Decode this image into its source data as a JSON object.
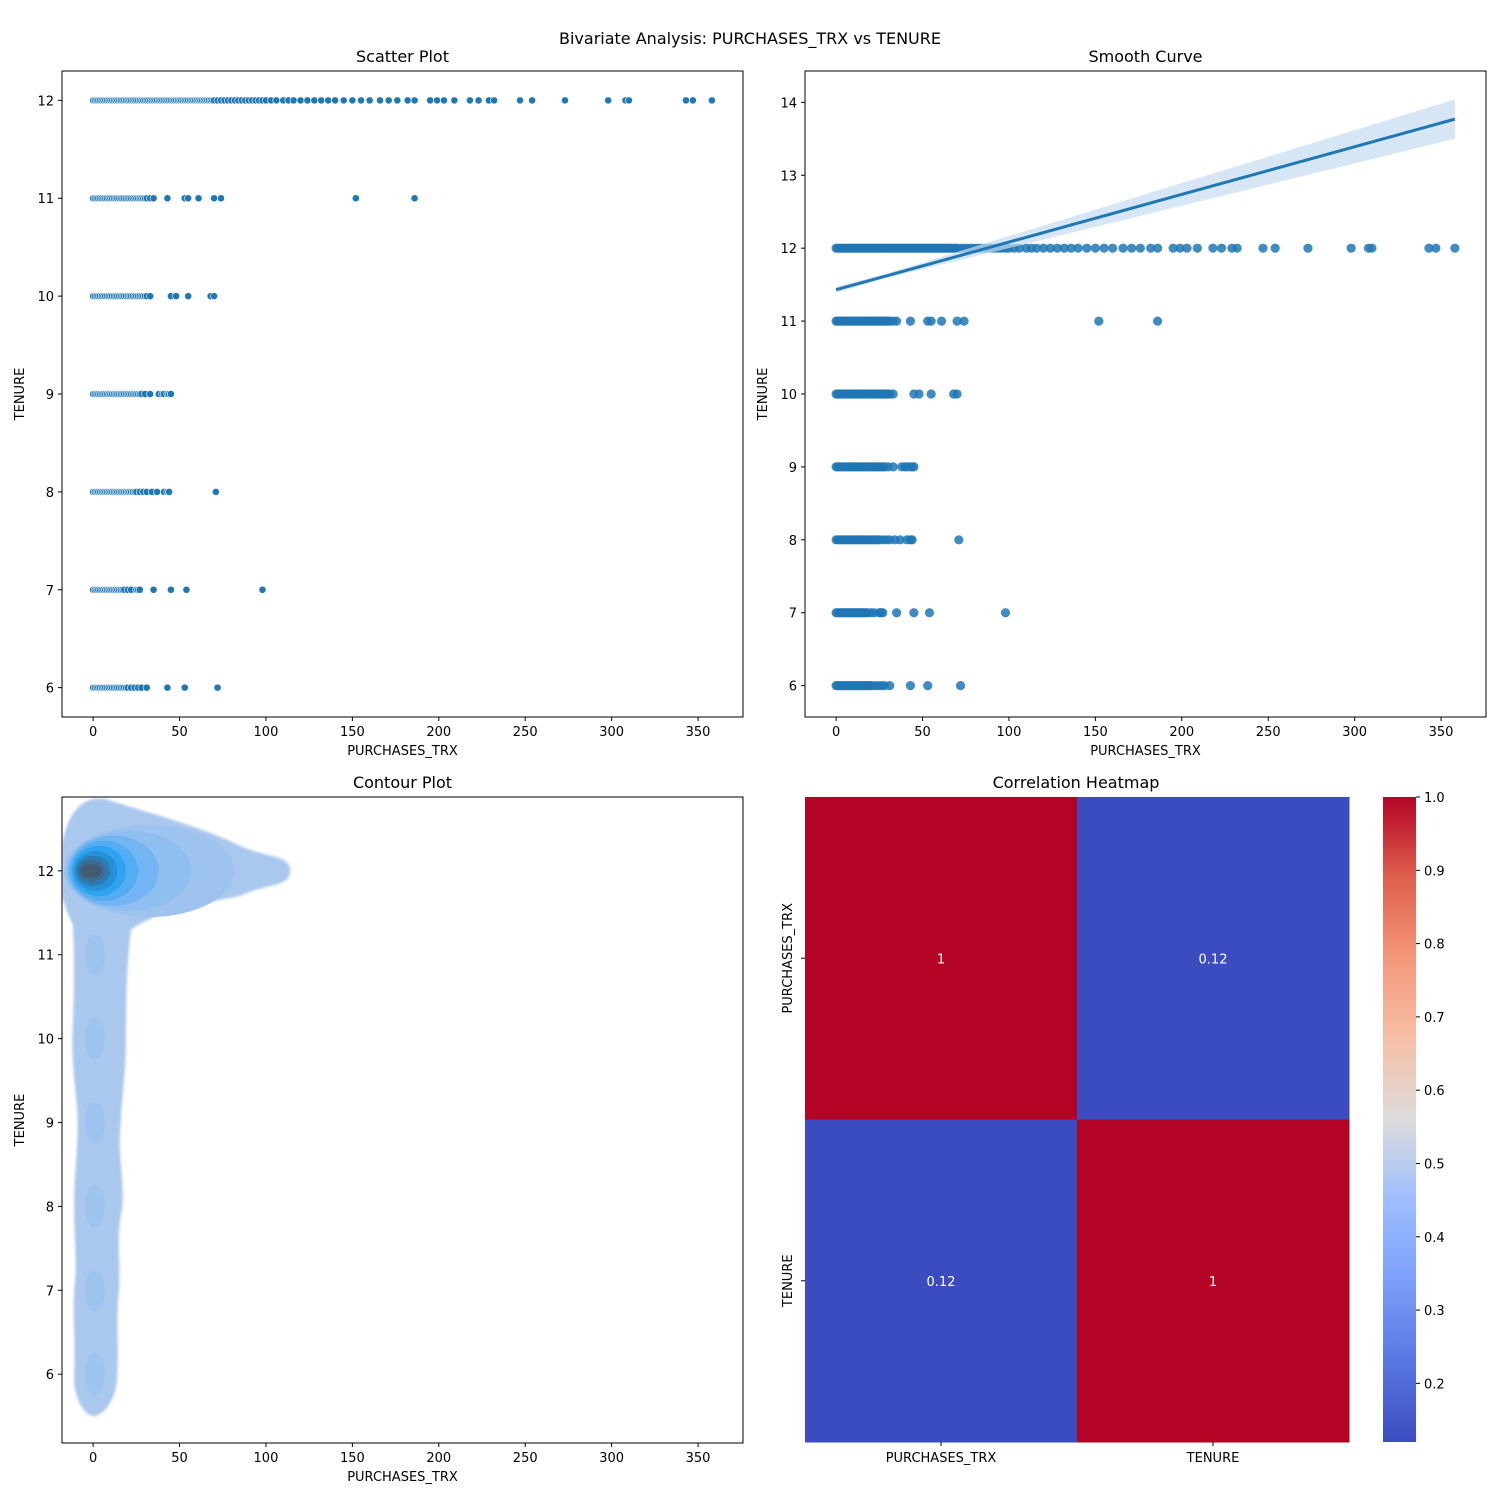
{
  "figure": {
    "suptitle": "Bivariate Analysis: PURCHASES_TRX vs TENURE"
  },
  "colors": {
    "scatter": "#1f77b4",
    "line": "#1f77b4",
    "band": "#c6dbef",
    "kde_levels": [
      "#aac8ee",
      "#9fc3ef",
      "#8ebff0",
      "#73b5f2",
      "#54acf2",
      "#2ea4f0",
      "#2591d6",
      "#2d7bb3",
      "#3c6a91",
      "#435b70"
    ],
    "heat_high": "#b40426",
    "heat_low": "#3b4cc0"
  },
  "chart_data": [
    {
      "type": "scatter",
      "title": "Scatter Plot",
      "xlabel": "PURCHASES_TRX",
      "ylabel": "TENURE",
      "xlim": [
        -18,
        376
      ],
      "ylim": [
        5.7,
        12.3
      ],
      "xticks": [
        0,
        50,
        100,
        150,
        200,
        250,
        300,
        350
      ],
      "yticks": [
        6,
        7,
        8,
        9,
        10,
        11,
        12
      ],
      "grid": false,
      "series": [
        {
          "y": 12,
          "x": [
            0,
            1,
            2,
            3,
            4,
            5,
            6,
            7,
            8,
            9,
            10,
            11,
            12,
            13,
            14,
            15,
            16,
            17,
            18,
            19,
            20,
            21,
            22,
            23,
            24,
            25,
            26,
            27,
            28,
            29,
            30,
            31,
            32,
            33,
            34,
            35,
            36,
            37,
            38,
            39,
            40,
            41,
            42,
            43,
            44,
            45,
            46,
            47,
            48,
            49,
            50,
            51,
            52,
            53,
            54,
            55,
            56,
            57,
            58,
            59,
            60,
            61,
            62,
            63,
            64,
            65,
            66,
            67,
            68,
            69,
            70,
            72,
            74,
            76,
            78,
            80,
            82,
            84,
            86,
            88,
            90,
            92,
            94,
            96,
            98,
            100,
            103,
            106,
            110,
            113,
            116,
            120,
            124,
            128,
            132,
            136,
            140,
            145,
            150,
            155,
            160,
            166,
            171,
            176,
            182,
            186,
            195,
            199,
            203,
            209,
            218,
            223,
            229,
            232,
            247,
            254,
            273,
            298,
            308,
            310,
            343,
            347,
            358
          ]
        },
        {
          "y": 11,
          "x": [
            0,
            1,
            2,
            3,
            4,
            5,
            6,
            7,
            8,
            9,
            10,
            11,
            12,
            13,
            14,
            15,
            16,
            17,
            18,
            19,
            20,
            21,
            22,
            23,
            24,
            25,
            26,
            27,
            28,
            29,
            30,
            31,
            33,
            35,
            43,
            53,
            55,
            61,
            70,
            74,
            152,
            186
          ]
        },
        {
          "y": 10,
          "x": [
            0,
            1,
            2,
            3,
            4,
            5,
            6,
            7,
            8,
            9,
            10,
            11,
            12,
            13,
            14,
            15,
            16,
            17,
            18,
            19,
            20,
            21,
            22,
            23,
            24,
            25,
            26,
            27,
            28,
            29,
            30,
            31,
            33,
            45,
            48,
            55,
            68,
            70
          ]
        },
        {
          "y": 9,
          "x": [
            0,
            1,
            2,
            3,
            4,
            5,
            6,
            7,
            8,
            9,
            10,
            11,
            12,
            13,
            14,
            15,
            16,
            17,
            18,
            19,
            20,
            21,
            22,
            23,
            24,
            25,
            26,
            27,
            28,
            30,
            33,
            38,
            40,
            41,
            43,
            44,
            45
          ]
        },
        {
          "y": 8,
          "x": [
            0,
            1,
            2,
            3,
            4,
            5,
            6,
            7,
            8,
            9,
            10,
            11,
            12,
            13,
            14,
            15,
            16,
            17,
            18,
            19,
            20,
            21,
            22,
            23,
            24,
            25,
            27,
            29,
            31,
            34,
            37,
            41,
            43,
            44,
            71
          ]
        },
        {
          "y": 7,
          "x": [
            0,
            1,
            2,
            3,
            4,
            5,
            6,
            7,
            8,
            9,
            10,
            11,
            12,
            13,
            14,
            15,
            16,
            17,
            18,
            20,
            22,
            25,
            26,
            27,
            35,
            45,
            54,
            98
          ]
        },
        {
          "y": 6,
          "x": [
            0,
            1,
            2,
            3,
            4,
            5,
            6,
            7,
            8,
            9,
            10,
            11,
            12,
            13,
            14,
            15,
            16,
            17,
            18,
            19,
            20,
            22,
            24,
            26,
            28,
            31,
            43,
            53,
            72
          ]
        }
      ]
    },
    {
      "type": "scatter",
      "title": "Smooth Curve",
      "xlabel": "PURCHASES_TRX",
      "ylabel": "TENURE",
      "xlim": [
        -18,
        376
      ],
      "ylim": [
        5.57,
        14.43
      ],
      "xticks": [
        0,
        50,
        100,
        150,
        200,
        250,
        300,
        350
      ],
      "yticks": [
        6,
        7,
        8,
        9,
        10,
        11,
        12,
        13,
        14
      ],
      "grid": false,
      "regression": {
        "x": [
          0,
          358
        ],
        "y": [
          11.43,
          13.77
        ],
        "band_halfwidth": [
          0.03,
          0.27
        ]
      },
      "series": [
        {
          "y": 12,
          "x": [
            0,
            1,
            2,
            3,
            4,
            5,
            6,
            7,
            8,
            9,
            10,
            11,
            12,
            13,
            14,
            15,
            16,
            17,
            18,
            19,
            20,
            21,
            22,
            23,
            24,
            25,
            26,
            27,
            28,
            29,
            30,
            31,
            32,
            33,
            34,
            35,
            36,
            37,
            38,
            39,
            40,
            41,
            42,
            43,
            44,
            45,
            46,
            47,
            48,
            49,
            50,
            51,
            52,
            53,
            54,
            55,
            56,
            57,
            58,
            59,
            60,
            61,
            62,
            63,
            64,
            65,
            66,
            67,
            68,
            69,
            70,
            72,
            74,
            76,
            78,
            80,
            82,
            84,
            86,
            88,
            90,
            92,
            94,
            96,
            98,
            100,
            103,
            106,
            110,
            113,
            116,
            120,
            124,
            128,
            132,
            136,
            140,
            145,
            150,
            155,
            160,
            166,
            171,
            176,
            182,
            186,
            195,
            199,
            203,
            209,
            218,
            223,
            229,
            232,
            247,
            254,
            273,
            298,
            308,
            310,
            343,
            347,
            358
          ]
        },
        {
          "y": 11,
          "x": [
            0,
            1,
            2,
            3,
            4,
            5,
            6,
            7,
            8,
            9,
            10,
            11,
            12,
            13,
            14,
            15,
            16,
            17,
            18,
            19,
            20,
            21,
            22,
            23,
            24,
            25,
            26,
            27,
            28,
            29,
            30,
            31,
            33,
            35,
            43,
            53,
            55,
            61,
            70,
            74,
            152,
            186
          ]
        },
        {
          "y": 10,
          "x": [
            0,
            1,
            2,
            3,
            4,
            5,
            6,
            7,
            8,
            9,
            10,
            11,
            12,
            13,
            14,
            15,
            16,
            17,
            18,
            19,
            20,
            21,
            22,
            23,
            24,
            25,
            26,
            27,
            28,
            29,
            30,
            31,
            33,
            45,
            48,
            55,
            68,
            70
          ]
        },
        {
          "y": 9,
          "x": [
            0,
            1,
            2,
            3,
            4,
            5,
            6,
            7,
            8,
            9,
            10,
            11,
            12,
            13,
            14,
            15,
            16,
            17,
            18,
            19,
            20,
            21,
            22,
            23,
            24,
            25,
            26,
            27,
            28,
            30,
            33,
            38,
            40,
            41,
            43,
            44,
            45
          ]
        },
        {
          "y": 8,
          "x": [
            0,
            1,
            2,
            3,
            4,
            5,
            6,
            7,
            8,
            9,
            10,
            11,
            12,
            13,
            14,
            15,
            16,
            17,
            18,
            19,
            20,
            21,
            22,
            23,
            24,
            25,
            27,
            29,
            31,
            34,
            37,
            41,
            43,
            44,
            71
          ]
        },
        {
          "y": 7,
          "x": [
            0,
            1,
            2,
            3,
            4,
            5,
            6,
            7,
            8,
            9,
            10,
            11,
            12,
            13,
            14,
            15,
            16,
            17,
            18,
            20,
            22,
            25,
            26,
            27,
            35,
            45,
            54,
            98
          ]
        },
        {
          "y": 6,
          "x": [
            0,
            1,
            2,
            3,
            4,
            5,
            6,
            7,
            8,
            9,
            10,
            11,
            12,
            13,
            14,
            15,
            16,
            17,
            18,
            19,
            20,
            22,
            24,
            26,
            28,
            31,
            43,
            53,
            72
          ]
        }
      ]
    },
    {
      "type": "area",
      "title": "Contour Plot",
      "xlabel": "PURCHASES_TRX",
      "ylabel": "TENURE",
      "xlim": [
        -18,
        376
      ],
      "ylim": [
        5.18,
        12.88
      ],
      "xticks": [
        0,
        50,
        100,
        150,
        200,
        250,
        300,
        350
      ],
      "yticks": [
        6,
        7,
        8,
        9,
        10,
        11,
        12
      ],
      "grid": false,
      "peak": {
        "x": 2,
        "y": 12
      },
      "outer_extent": {
        "x": [
          -18,
          114
        ],
        "y": [
          5.5,
          12.88
        ]
      },
      "lobes": [
        {
          "y": 12,
          "x_min": -18,
          "x_max": 114
        },
        {
          "y": 11,
          "x_min": -12,
          "x_max": 22
        },
        {
          "y": 10,
          "x_min": -12,
          "x_max": 19
        },
        {
          "y": 9,
          "x_min": -9,
          "x_max": 16
        },
        {
          "y": 8,
          "x_min": -11,
          "x_max": 17
        },
        {
          "y": 7,
          "x_min": -11,
          "x_max": 15
        },
        {
          "y": 6,
          "x_min": -11,
          "x_max": 14
        }
      ]
    },
    {
      "type": "heatmap",
      "title": "Correlation Heatmap",
      "x_labels": [
        "PURCHASES_TRX",
        "TENURE"
      ],
      "y_labels": [
        "PURCHASES_TRX",
        "TENURE"
      ],
      "values": [
        [
          1,
          0.12
        ],
        [
          0.12,
          1
        ]
      ],
      "annotations": [
        [
          "1",
          "0.12"
        ],
        [
          "0.12",
          "1"
        ]
      ],
      "colormap": "coolwarm",
      "colorbar": {
        "range": [
          0.12,
          1.0
        ],
        "ticks": [
          "0.2",
          "0.3",
          "0.4",
          "0.5",
          "0.6",
          "0.7",
          "0.8",
          "0.9",
          "1.0"
        ]
      }
    }
  ]
}
